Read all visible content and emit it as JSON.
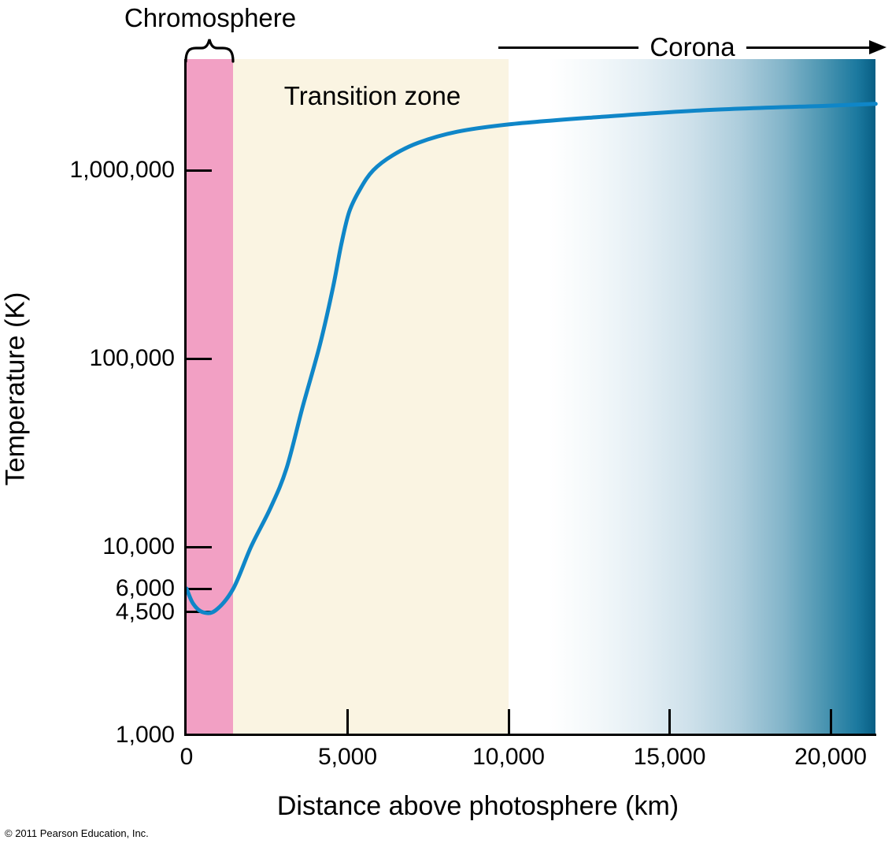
{
  "labels": {
    "chromosphere": "Chromosphere",
    "transition_zone": "Transition zone",
    "corona": "Corona"
  },
  "axes": {
    "x_title": "Distance above photosphere (km)",
    "y_title": "Temperature (K)"
  },
  "footer": {
    "copyright": "© 2011 Pearson Education, Inc."
  },
  "colors": {
    "chromosphere_band": "#f2a0c4",
    "transition_band": "#faf4e2",
    "corona_end": "#085e84",
    "curve_blue": "#0f86c8",
    "axis_black": "#000000"
  },
  "chart_data": {
    "type": "line",
    "title": "",
    "xlabel": "Distance above photosphere (km)",
    "ylabel": "Temperature (K)",
    "grid": false,
    "legend": false,
    "x_axis": {
      "min": 0,
      "max": 21400,
      "ticks": [
        {
          "value": 0,
          "label": "0"
        },
        {
          "value": 5000,
          "label": "5,000"
        },
        {
          "value": 10000,
          "label": "10,000"
        },
        {
          "value": 15000,
          "label": "15,000"
        },
        {
          "value": 20000,
          "label": "20,000"
        }
      ]
    },
    "y_axis": {
      "scale": "log",
      "min": 1000,
      "max": 4000000,
      "ticks": [
        {
          "value": 1000,
          "label": "1,000"
        },
        {
          "value": 4500,
          "label": "4,500"
        },
        {
          "value": 6000,
          "label": "6,000"
        },
        {
          "value": 10000,
          "label": "10,000"
        },
        {
          "value": 100000,
          "label": "100,000"
        },
        {
          "value": 1000000,
          "label": "1,000,000"
        }
      ]
    },
    "regions": [
      {
        "name": "Chromosphere",
        "start_km": 0,
        "end_km": 1450,
        "fill": "#f2a0c4"
      },
      {
        "name": "Transition zone",
        "start_km": 1450,
        "end_km": 10000,
        "fill": "#faf4e2"
      },
      {
        "name": "Corona",
        "start_km": 10000,
        "end_km": 21400,
        "fill": "gradient white to #085e84"
      }
    ],
    "series": [
      {
        "name": "temperature-profile",
        "color": "#0f86c8",
        "points_km_K": [
          [
            0,
            6000
          ],
          [
            200,
            5000
          ],
          [
            500,
            4500
          ],
          [
            900,
            4600
          ],
          [
            1450,
            6000
          ],
          [
            2000,
            10000
          ],
          [
            2600,
            16000
          ],
          [
            3100,
            26000
          ],
          [
            3600,
            55000
          ],
          [
            4150,
            120000
          ],
          [
            4550,
            240000
          ],
          [
            4800,
            400000
          ],
          [
            5050,
            600000
          ],
          [
            5400,
            800000
          ],
          [
            5800,
            1000000
          ],
          [
            6400,
            1200000
          ],
          [
            7200,
            1400000
          ],
          [
            8400,
            1600000
          ],
          [
            10000,
            1750000
          ],
          [
            12500,
            1900000
          ],
          [
            16000,
            2080000
          ],
          [
            19900,
            2200000
          ],
          [
            21400,
            2250000
          ]
        ]
      }
    ]
  }
}
